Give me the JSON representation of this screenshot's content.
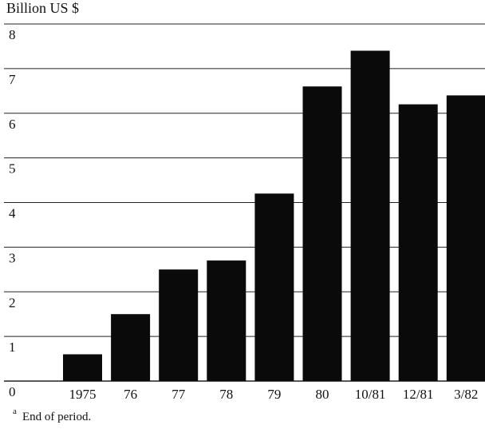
{
  "chart_data": {
    "type": "bar",
    "ylabel": "Billion US $",
    "xlabel": "",
    "title": "",
    "categories": [
      "1975",
      "76",
      "77",
      "78",
      "79",
      "80",
      "10/81",
      "12/81",
      "3/82"
    ],
    "values": [
      0.6,
      1.5,
      2.5,
      2.7,
      4.2,
      6.6,
      7.4,
      6.2,
      6.4
    ],
    "ylim": [
      0,
      8
    ],
    "yticks": [
      "0",
      "1",
      "2",
      "3",
      "4",
      "5",
      "6",
      "7",
      "8"
    ],
    "grid": true,
    "bar_color": "#0a0a0a"
  },
  "footnote": {
    "marker": "a",
    "text": "End of period."
  }
}
